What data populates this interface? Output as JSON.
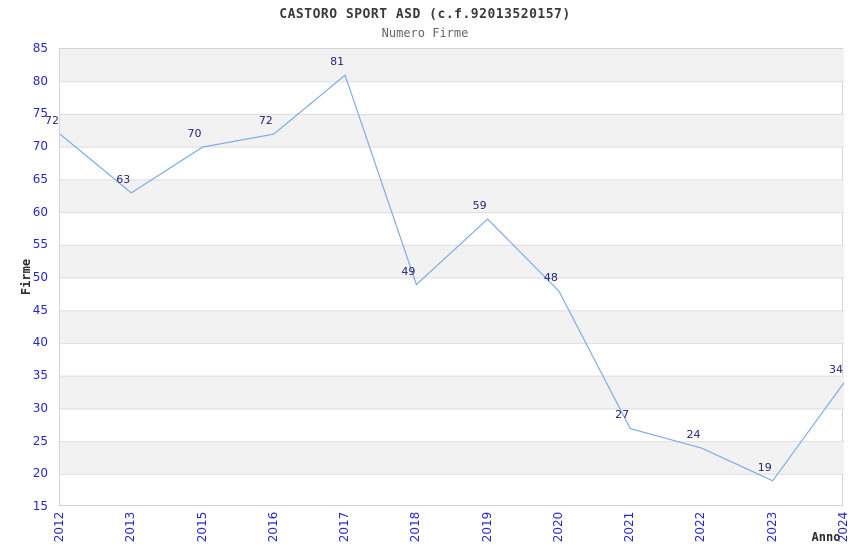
{
  "chart_data": {
    "type": "line",
    "title": "CASTORO SPORT ASD (c.f.92013520157)",
    "subtitle": "Numero Firme",
    "xlabel": "Anno",
    "ylabel": "Firme",
    "categories": [
      "2012",
      "2013",
      "2015",
      "2016",
      "2017",
      "2018",
      "2019",
      "2020",
      "2021",
      "2022",
      "2023",
      "2024"
    ],
    "values": [
      72,
      63,
      70,
      72,
      81,
      49,
      59,
      48,
      27,
      24,
      19,
      34
    ],
    "point_labels": [
      "72",
      "63",
      "70",
      "72",
      "81",
      "49",
      "59",
      "48",
      "27",
      "24",
      "19",
      "34"
    ],
    "ylim": [
      15,
      85
    ],
    "ytick_step": 5,
    "ytick_labels": [
      "85",
      "80",
      "75",
      "70",
      "65",
      "60",
      "55",
      "50",
      "45",
      "40",
      "35",
      "30",
      "25",
      "20",
      "15"
    ],
    "grid": "horizontal-bands-alternating",
    "legend": "none",
    "colors": {
      "line": "#7fade6",
      "tick_label": "#2727cd",
      "point_label": "#26267a",
      "band": "#f2f2f2",
      "gridline": "#dedede",
      "plot_border": "#d4d4d4",
      "title_text": "#3a3a3a",
      "subtitle_text": "#666666",
      "axis_title_text": "#2b2b2b",
      "background": "#ffffff"
    }
  }
}
